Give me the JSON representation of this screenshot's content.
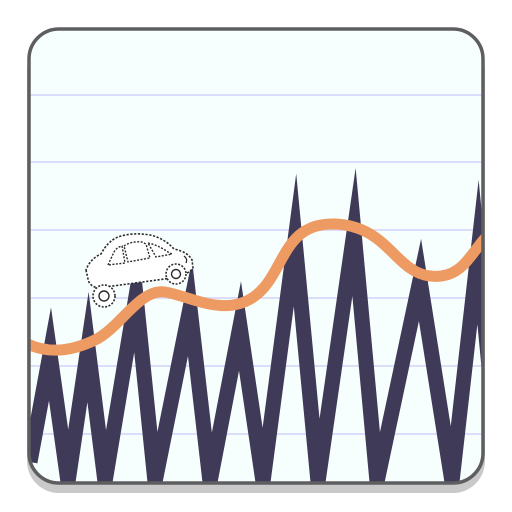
{
  "app": {
    "type": "game-icon"
  },
  "colors": {
    "panel_fill": "#f6fffd",
    "panel_border": "#5e5e60",
    "panel_shadow": "#c9c9c9",
    "ruled_line": "#dcdcfb",
    "zigzag": "#3e3a57",
    "road": "#ee9a63",
    "car_fill": "#ffffff",
    "car_outline": "#2c2c2c"
  },
  "icons": {
    "car": "car-icon"
  }
}
